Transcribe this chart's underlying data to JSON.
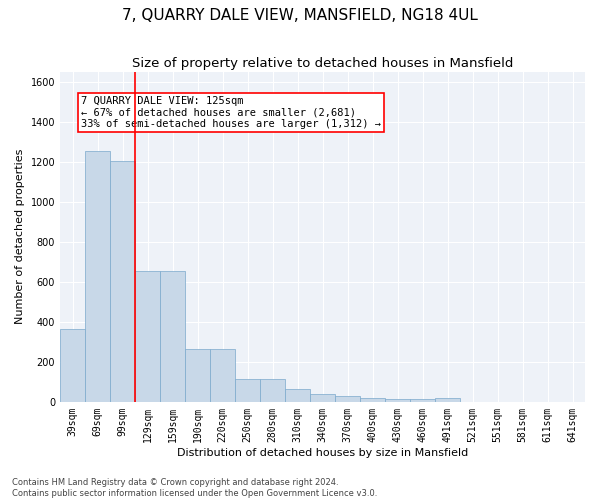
{
  "title": "7, QUARRY DALE VIEW, MANSFIELD, NG18 4UL",
  "subtitle": "Size of property relative to detached houses in Mansfield",
  "xlabel": "Distribution of detached houses by size in Mansfield",
  "ylabel": "Number of detached properties",
  "footnote": "Contains HM Land Registry data © Crown copyright and database right 2024.\nContains public sector information licensed under the Open Government Licence v3.0.",
  "categories": [
    "39sqm",
    "69sqm",
    "99sqm",
    "129sqm",
    "159sqm",
    "190sqm",
    "220sqm",
    "250sqm",
    "280sqm",
    "310sqm",
    "340sqm",
    "370sqm",
    "400sqm",
    "430sqm",
    "460sqm",
    "491sqm",
    "521sqm",
    "551sqm",
    "581sqm",
    "611sqm",
    "641sqm"
  ],
  "values": [
    365,
    1255,
    1205,
    655,
    655,
    265,
    265,
    115,
    115,
    65,
    40,
    30,
    20,
    15,
    15,
    20,
    0,
    0,
    0,
    0,
    0
  ],
  "bar_color": "#c8d8e8",
  "bar_edge_color": "#7aa8cc",
  "background_color": "#eef2f8",
  "grid_color": "#ffffff",
  "ylim": [
    0,
    1650
  ],
  "yticks": [
    0,
    200,
    400,
    600,
    800,
    1000,
    1200,
    1400,
    1600
  ],
  "red_line_x": 2.5,
  "annotation_text": "7 QUARRY DALE VIEW: 125sqm\n← 67% of detached houses are smaller (2,681)\n33% of semi-detached houses are larger (1,312) →",
  "title_fontsize": 11,
  "subtitle_fontsize": 9.5,
  "axis_label_fontsize": 8,
  "tick_fontsize": 7,
  "annotation_fontsize": 7.5,
  "footnote_fontsize": 6
}
